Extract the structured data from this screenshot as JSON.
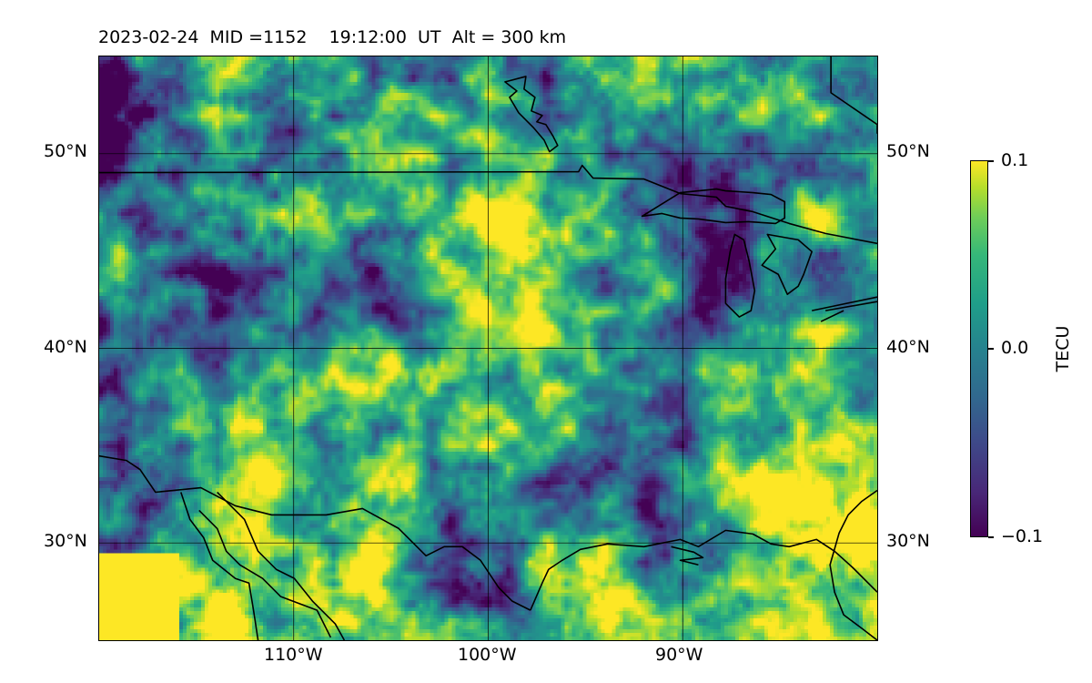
{
  "header": {
    "title": "2023-02-24  MID =1152    19:12:00  UT  Alt = 300 km"
  },
  "map": {
    "type": "heatmap",
    "projection": "equirectangular",
    "lon_range": [
      -120,
      -80
    ],
    "lat_range": [
      25,
      55
    ],
    "gridlines": true,
    "lon_ticks": [
      {
        "value": -110,
        "label": "110°W"
      },
      {
        "value": -100,
        "label": "100°W"
      },
      {
        "value": -90,
        "label": "90°W"
      }
    ],
    "lat_ticks": [
      {
        "value": 50,
        "label": "50°N"
      },
      {
        "value": 40,
        "label": "40°N"
      },
      {
        "value": 30,
        "label": "30°N"
      }
    ],
    "colors": {
      "coastline": "#000000",
      "gridline": "#000000",
      "colormap": "viridis"
    }
  },
  "colorbar": {
    "label": "TECU",
    "min": -0.1,
    "max": 0.1,
    "ticks": [
      {
        "value": 0.1,
        "label": "0.1"
      },
      {
        "value": 0.0,
        "label": "0.0"
      },
      {
        "value": -0.1,
        "label": "−0.1"
      }
    ]
  }
}
